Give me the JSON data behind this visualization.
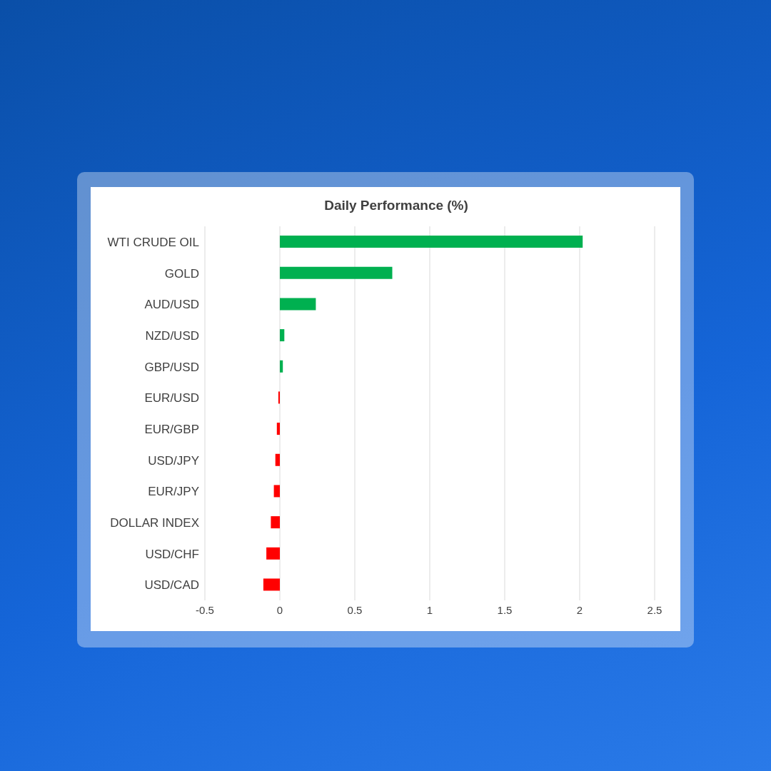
{
  "chart_data": {
    "type": "bar",
    "orientation": "horizontal",
    "title": "Daily Performance (%)",
    "categories": [
      "WTI CRUDE OIL",
      "GOLD",
      "AUD/USD",
      "NZD/USD",
      "GBP/USD",
      "EUR/USD",
      "EUR/GBP",
      "USD/JPY",
      "EUR/JPY",
      "DOLLAR INDEX",
      "USD/CHF",
      "USD/CAD"
    ],
    "values": [
      2.02,
      0.75,
      0.24,
      0.03,
      0.02,
      -0.01,
      -0.02,
      -0.03,
      -0.04,
      -0.06,
      -0.09,
      -0.11
    ],
    "colors": [
      "#00b050",
      "#00b050",
      "#00b050",
      "#00b050",
      "#00b050",
      "#ff0000",
      "#ff0000",
      "#ff0000",
      "#ff0000",
      "#ff0000",
      "#ff0000",
      "#ff0000"
    ],
    "xlim": [
      -0.5,
      2.5
    ],
    "xticks": [
      -0.5,
      0,
      0.5,
      1,
      1.5,
      2,
      2.5
    ],
    "grid": "x"
  }
}
